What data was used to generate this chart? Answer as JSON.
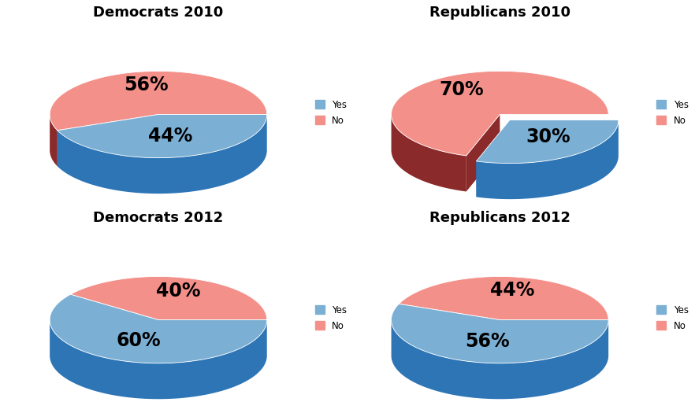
{
  "charts": [
    {
      "title": "Democrats 2010",
      "yes": 44,
      "no": 56,
      "explode_yes": false,
      "explode_no": false
    },
    {
      "title": "Republicans 2010",
      "yes": 30,
      "no": 70,
      "explode_yes": true,
      "explode_no": false
    },
    {
      "title": "Democrats 2012",
      "yes": 60,
      "no": 40,
      "explode_yes": false,
      "explode_no": false
    },
    {
      "title": "Republicans 2012",
      "yes": 56,
      "no": 44,
      "explode_yes": false,
      "explode_no": false
    }
  ],
  "color_yes": "#7BAFD4",
  "color_yes_dark": "#2E75B6",
  "color_no": "#F4908A",
  "color_no_dark": "#8B2A2A",
  "bg_color": "#FFFFFF",
  "label_fontsize": 17,
  "title_fontsize": 13
}
